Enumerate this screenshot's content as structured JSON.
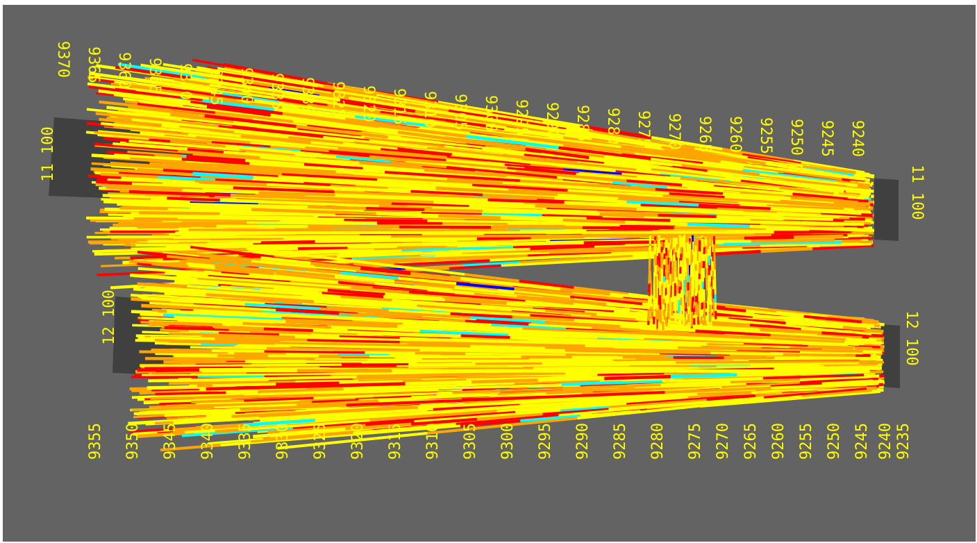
{
  "colors": {
    "background": "#636363",
    "platform": "#404040",
    "label": "#ffff00",
    "palette": [
      "#ffff00",
      "#ffa500",
      "#ff0000",
      "#00ffff",
      "#0000ff"
    ]
  },
  "upper_well": {
    "left_ref": "11 100",
    "right_ref": "11 100",
    "depth_labels": [
      "9370",
      "9365",
      "9360",
      "9355",
      "9350",
      "9345",
      "9340",
      "9335",
      "9330",
      "9325",
      "9320",
      "9315",
      "9310",
      "9305",
      "9300",
      "9295",
      "9290",
      "9285",
      "9280",
      "9275",
      "9270",
      "9265",
      "9260",
      "9255",
      "9250",
      "9245",
      "9240"
    ]
  },
  "lower_well": {
    "left_ref": "12 100",
    "right_ref": "12 100",
    "depth_labels": [
      "9355",
      "9350",
      "9345",
      "9340",
      "9335",
      "9330",
      "9325",
      "9320",
      "9315",
      "9310",
      "9305",
      "9300",
      "9295",
      "9290",
      "9285",
      "9280",
      "9275",
      "9270",
      "9265",
      "9260",
      "9255",
      "9250",
      "9245",
      "9240",
      "9235"
    ]
  }
}
